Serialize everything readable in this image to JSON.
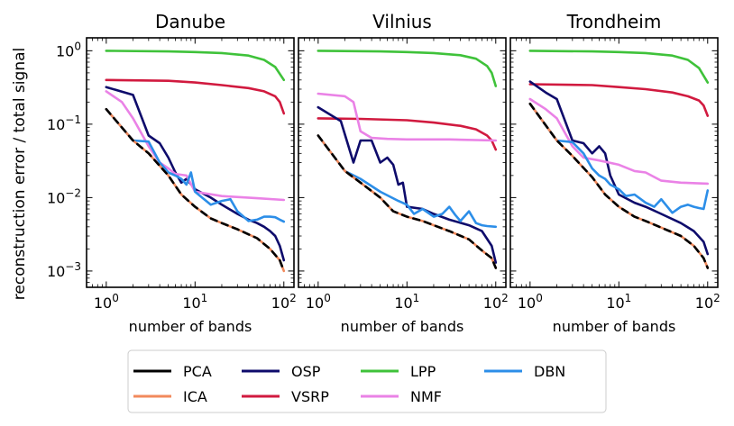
{
  "figure": {
    "shared_ylabel": "reconstruction error / total signal"
  },
  "legend": {
    "columns": 4,
    "placement": "bottom-center",
    "entries": [
      {
        "name": "PCA",
        "color": "#000000"
      },
      {
        "name": "ICA",
        "color": "#f28a5c"
      },
      {
        "name": "OSP",
        "color": "#0e0b6b"
      },
      {
        "name": "VSRP",
        "color": "#d11a3f"
      },
      {
        "name": "LPP",
        "color": "#3fc23a"
      },
      {
        "name": "NMF",
        "color": "#ea82e6"
      },
      {
        "name": "DBN",
        "color": "#2c8ee8"
      }
    ]
  },
  "chart_data": [
    {
      "type": "line",
      "title": "Danube",
      "xlabel": "number of bands",
      "ylabel": "reconstruction error / total signal",
      "xscale": "log",
      "yscale": "log",
      "xlim": [
        0.6,
        130
      ],
      "ylim": [
        0.0006,
        1.5
      ],
      "xticks": [
        {
          "v": 1,
          "base": "10",
          "exp": "0"
        },
        {
          "v": 10,
          "base": "10",
          "exp": "1"
        },
        {
          "v": 100,
          "base": "10",
          "exp": "2"
        }
      ],
      "yticks": [
        {
          "v": 0.001,
          "base": "10",
          "exp": "−3"
        },
        {
          "v": 0.01,
          "base": "10",
          "exp": "−2"
        },
        {
          "v": 0.1,
          "base": "10",
          "exp": "−1"
        },
        {
          "v": 1,
          "base": "10",
          "exp": "0"
        }
      ],
      "series": [
        {
          "name": "LPP",
          "color": "#3fc23a",
          "x": [
            1,
            5,
            10,
            20,
            40,
            60,
            80,
            100
          ],
          "y": [
            1.0,
            0.98,
            0.96,
            0.93,
            0.86,
            0.75,
            0.6,
            0.4
          ]
        },
        {
          "name": "VSRP",
          "color": "#d11a3f",
          "x": [
            1,
            5,
            10,
            20,
            40,
            60,
            80,
            90,
            100
          ],
          "y": [
            0.4,
            0.39,
            0.37,
            0.34,
            0.31,
            0.28,
            0.24,
            0.2,
            0.14
          ]
        },
        {
          "name": "OSP",
          "color": "#0e0b6b",
          "x": [
            1,
            2,
            3,
            4,
            5,
            6,
            7,
            8,
            10,
            15,
            20,
            30,
            40,
            50,
            60,
            70,
            80,
            90,
            100
          ],
          "y": [
            0.32,
            0.25,
            0.07,
            0.055,
            0.035,
            0.022,
            0.016,
            0.018,
            0.013,
            0.01,
            0.008,
            0.006,
            0.005,
            0.0045,
            0.004,
            0.0035,
            0.003,
            0.0022,
            0.0014
          ]
        },
        {
          "name": "NMF",
          "color": "#ea82e6",
          "x": [
            1,
            1.5,
            2,
            3,
            4,
            5,
            6,
            8,
            10,
            20,
            50,
            100
          ],
          "y": [
            0.28,
            0.2,
            0.12,
            0.05,
            0.03,
            0.025,
            0.021,
            0.02,
            0.012,
            0.0105,
            0.0098,
            0.0093
          ]
        },
        {
          "name": "DBN",
          "color": "#2c8ee8",
          "x": [
            1,
            2,
            3,
            4,
            5,
            6,
            7,
            8,
            9,
            10,
            12,
            15,
            20,
            25,
            30,
            40,
            50,
            60,
            70,
            80,
            90,
            100
          ],
          "y": [
            0.16,
            0.06,
            0.058,
            0.03,
            0.022,
            0.02,
            0.018,
            0.015,
            0.022,
            0.012,
            0.01,
            0.008,
            0.009,
            0.0095,
            0.0065,
            0.0048,
            0.005,
            0.0055,
            0.0055,
            0.0054,
            0.005,
            0.0047
          ]
        },
        {
          "name": "ICA",
          "color": "#f28a5c",
          "x": [
            1,
            2,
            3,
            5,
            7,
            10,
            15,
            20,
            30,
            50,
            70,
            90,
            100
          ],
          "y": [
            0.16,
            0.06,
            0.04,
            0.02,
            0.011,
            0.0075,
            0.0052,
            0.0045,
            0.0037,
            0.0028,
            0.002,
            0.0014,
            0.001
          ]
        },
        {
          "name": "PCA",
          "color": "#000000",
          "x": [
            1,
            2,
            3,
            5,
            7,
            10,
            15,
            20,
            30,
            50,
            70,
            90,
            100
          ],
          "y": [
            0.16,
            0.06,
            0.04,
            0.02,
            0.011,
            0.0075,
            0.0052,
            0.0045,
            0.0037,
            0.0028,
            0.002,
            0.0014,
            0.001
          ]
        }
      ]
    },
    {
      "type": "line",
      "title": "Vilnius",
      "xlabel": "number of bands",
      "xscale": "log",
      "yscale": "log",
      "xlim": [
        0.6,
        130
      ],
      "ylim": [
        0.0006,
        1.5
      ],
      "xticks": [
        {
          "v": 1,
          "base": "10",
          "exp": "0"
        },
        {
          "v": 10,
          "base": "10",
          "exp": "1"
        },
        {
          "v": 100,
          "base": "10",
          "exp": "2"
        }
      ],
      "yticks": [],
      "series": [
        {
          "name": "LPP",
          "color": "#3fc23a",
          "x": [
            1,
            5,
            10,
            20,
            40,
            60,
            80,
            90,
            100
          ],
          "y": [
            1.0,
            0.98,
            0.96,
            0.93,
            0.87,
            0.78,
            0.62,
            0.5,
            0.33
          ]
        },
        {
          "name": "VSRP",
          "color": "#d11a3f",
          "x": [
            1,
            3,
            10,
            20,
            40,
            60,
            80,
            90,
            100
          ],
          "y": [
            0.12,
            0.118,
            0.113,
            0.105,
            0.095,
            0.085,
            0.07,
            0.06,
            0.045
          ]
        },
        {
          "name": "NMF",
          "color": "#ea82e6",
          "x": [
            1,
            2,
            2.5,
            3,
            4,
            6,
            10,
            30,
            100
          ],
          "y": [
            0.26,
            0.24,
            0.2,
            0.08,
            0.065,
            0.063,
            0.062,
            0.062,
            0.06
          ]
        },
        {
          "name": "OSP",
          "color": "#0e0b6b",
          "x": [
            1,
            1.8,
            2.5,
            3,
            4,
            5,
            6,
            7,
            8,
            9,
            10,
            15,
            20,
            30,
            50,
            70,
            90,
            100
          ],
          "y": [
            0.17,
            0.11,
            0.03,
            0.06,
            0.06,
            0.03,
            0.035,
            0.028,
            0.015,
            0.016,
            0.0075,
            0.007,
            0.006,
            0.005,
            0.0042,
            0.0035,
            0.0022,
            0.0013
          ]
        },
        {
          "name": "DBN",
          "color": "#2c8ee8",
          "x": [
            1,
            2,
            3,
            5,
            8,
            10,
            12,
            15,
            20,
            25,
            30,
            35,
            40,
            50,
            60,
            70,
            80,
            100
          ],
          "y": [
            0.07,
            0.023,
            0.018,
            0.012,
            0.009,
            0.008,
            0.006,
            0.007,
            0.0055,
            0.006,
            0.0075,
            0.0058,
            0.0048,
            0.0065,
            0.0045,
            0.0042,
            0.0041,
            0.004
          ]
        },
        {
          "name": "ICA",
          "color": "#f28a5c",
          "x": [
            1,
            2,
            3,
            5,
            7,
            10,
            15,
            20,
            30,
            50,
            70,
            90,
            100
          ],
          "y": [
            0.07,
            0.023,
            0.016,
            0.01,
            0.0065,
            0.0055,
            0.0048,
            0.0042,
            0.0035,
            0.0027,
            0.0019,
            0.0015,
            0.0011
          ]
        },
        {
          "name": "PCA",
          "color": "#000000",
          "x": [
            1,
            2,
            3,
            5,
            7,
            10,
            15,
            20,
            30,
            50,
            70,
            90,
            100
          ],
          "y": [
            0.07,
            0.023,
            0.016,
            0.01,
            0.0065,
            0.0055,
            0.0048,
            0.0042,
            0.0035,
            0.0027,
            0.0019,
            0.0015,
            0.0011
          ]
        }
      ]
    },
    {
      "type": "line",
      "title": "Trondheim",
      "xlabel": "number of bands",
      "xscale": "log",
      "yscale": "log",
      "xlim": [
        0.6,
        130
      ],
      "ylim": [
        0.0006,
        1.5
      ],
      "xticks": [
        {
          "v": 1,
          "base": "10",
          "exp": "0"
        },
        {
          "v": 10,
          "base": "10",
          "exp": "1"
        },
        {
          "v": 100,
          "base": "10",
          "exp": "2"
        }
      ],
      "yticks": [],
      "series": [
        {
          "name": "LPP",
          "color": "#3fc23a",
          "x": [
            1,
            5,
            10,
            20,
            40,
            60,
            80,
            100
          ],
          "y": [
            1.0,
            0.98,
            0.96,
            0.93,
            0.86,
            0.75,
            0.58,
            0.37
          ]
        },
        {
          "name": "VSRP",
          "color": "#d11a3f",
          "x": [
            1,
            5,
            10,
            20,
            40,
            60,
            80,
            90,
            100
          ],
          "y": [
            0.35,
            0.34,
            0.32,
            0.3,
            0.27,
            0.24,
            0.21,
            0.18,
            0.13
          ]
        },
        {
          "name": "OSP",
          "color": "#0e0b6b",
          "x": [
            1,
            1.5,
            2,
            3,
            4,
            5,
            6,
            7,
            8,
            10,
            15,
            20,
            30,
            50,
            70,
            90,
            100
          ],
          "y": [
            0.38,
            0.27,
            0.22,
            0.06,
            0.055,
            0.04,
            0.05,
            0.04,
            0.02,
            0.011,
            0.0085,
            0.0075,
            0.006,
            0.0045,
            0.0035,
            0.0025,
            0.0017
          ]
        },
        {
          "name": "NMF",
          "color": "#ea82e6",
          "x": [
            1,
            1.5,
            2,
            3,
            4,
            6,
            10,
            15,
            20,
            30,
            50,
            100
          ],
          "y": [
            0.22,
            0.16,
            0.12,
            0.05,
            0.035,
            0.032,
            0.028,
            0.023,
            0.022,
            0.017,
            0.016,
            0.0155
          ]
        },
        {
          "name": "DBN",
          "color": "#2c8ee8",
          "x": [
            1,
            2,
            3,
            4,
            5,
            6,
            7,
            8,
            10,
            12,
            15,
            20,
            25,
            30,
            40,
            50,
            60,
            70,
            80,
            90,
            100
          ],
          "y": [
            0.19,
            0.06,
            0.057,
            0.04,
            0.025,
            0.02,
            0.018,
            0.015,
            0.013,
            0.0105,
            0.011,
            0.0085,
            0.0075,
            0.0095,
            0.0062,
            0.0075,
            0.008,
            0.0075,
            0.0072,
            0.007,
            0.0125
          ]
        },
        {
          "name": "ICA",
          "color": "#f28a5c",
          "x": [
            1,
            2,
            3,
            5,
            7,
            10,
            15,
            20,
            30,
            50,
            70,
            90,
            100
          ],
          "y": [
            0.19,
            0.06,
            0.037,
            0.019,
            0.011,
            0.0075,
            0.0055,
            0.0048,
            0.0039,
            0.003,
            0.0022,
            0.0015,
            0.0011
          ]
        },
        {
          "name": "PCA",
          "color": "#000000",
          "x": [
            1,
            2,
            3,
            5,
            7,
            10,
            15,
            20,
            30,
            50,
            70,
            90,
            100
          ],
          "y": [
            0.19,
            0.06,
            0.037,
            0.019,
            0.011,
            0.0075,
            0.0055,
            0.0048,
            0.0039,
            0.003,
            0.0022,
            0.0015,
            0.0011
          ]
        }
      ]
    }
  ]
}
